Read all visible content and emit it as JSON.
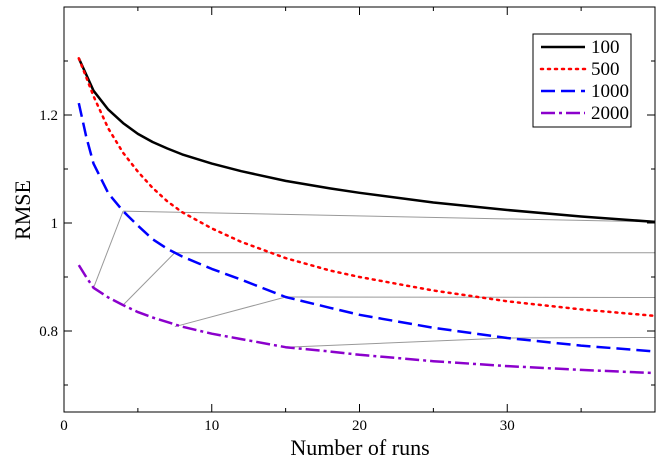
{
  "chart_data": {
    "type": "line",
    "xlabel": "Number of runs",
    "ylabel": "RMSE",
    "xlim": [
      0,
      40
    ],
    "ylim": [
      0.65,
      1.4
    ],
    "x_ticks": [
      0,
      10,
      20,
      30
    ],
    "x_tick_labels": [
      "0",
      "10",
      "20",
      "30"
    ],
    "y_ticks": [
      0.8,
      1.0,
      1.2
    ],
    "y_tick_labels": [
      "0.8",
      "1",
      "1.2"
    ],
    "grid": false,
    "legend_position": "top-right",
    "series": [
      {
        "name": "100",
        "color": "#000000",
        "style": "solid",
        "points": [
          [
            1,
            1.305
          ],
          [
            1.5,
            1.275
          ],
          [
            2,
            1.245
          ],
          [
            3,
            1.21
          ],
          [
            4,
            1.185
          ],
          [
            5,
            1.165
          ],
          [
            6,
            1.15
          ],
          [
            7,
            1.138
          ],
          [
            8,
            1.127
          ],
          [
            10,
            1.11
          ],
          [
            12,
            1.096
          ],
          [
            15,
            1.078
          ],
          [
            18,
            1.064
          ],
          [
            20,
            1.056
          ],
          [
            25,
            1.038
          ],
          [
            30,
            1.024
          ],
          [
            35,
            1.012
          ],
          [
            40,
            1.002
          ]
        ]
      },
      {
        "name": "500",
        "color": "#ff0000",
        "style": "dotted",
        "points": [
          [
            1,
            1.305
          ],
          [
            1.5,
            1.27
          ],
          [
            2,
            1.235
          ],
          [
            3,
            1.175
          ],
          [
            4,
            1.13
          ],
          [
            5,
            1.095
          ],
          [
            6,
            1.065
          ],
          [
            7,
            1.04
          ],
          [
            8,
            1.02
          ],
          [
            10,
            0.99
          ],
          [
            12,
            0.965
          ],
          [
            15,
            0.935
          ],
          [
            18,
            0.912
          ],
          [
            20,
            0.9
          ],
          [
            25,
            0.875
          ],
          [
            30,
            0.855
          ],
          [
            35,
            0.84
          ],
          [
            40,
            0.828
          ]
        ]
      },
      {
        "name": "1000",
        "color": "#0000ff",
        "style": "dashed",
        "points": [
          [
            1,
            1.222
          ],
          [
            1.5,
            1.16
          ],
          [
            2,
            1.11
          ],
          [
            3,
            1.055
          ],
          [
            4,
            1.022
          ],
          [
            5,
            0.995
          ],
          [
            6,
            0.97
          ],
          [
            7,
            0.952
          ],
          [
            8,
            0.938
          ],
          [
            10,
            0.915
          ],
          [
            12,
            0.895
          ],
          [
            15,
            0.863
          ],
          [
            18,
            0.843
          ],
          [
            20,
            0.83
          ],
          [
            25,
            0.806
          ],
          [
            30,
            0.787
          ],
          [
            35,
            0.773
          ],
          [
            40,
            0.762
          ]
        ]
      },
      {
        "name": "2000",
        "color": "#8b00cc",
        "style": "dashdot",
        "points": [
          [
            1,
            0.922
          ],
          [
            1.5,
            0.9
          ],
          [
            2,
            0.88
          ],
          [
            3,
            0.862
          ],
          [
            4,
            0.848
          ],
          [
            5,
            0.835
          ],
          [
            6,
            0.825
          ],
          [
            8,
            0.808
          ],
          [
            10,
            0.795
          ],
          [
            12,
            0.785
          ],
          [
            15,
            0.77
          ],
          [
            18,
            0.762
          ],
          [
            20,
            0.756
          ],
          [
            25,
            0.744
          ],
          [
            30,
            0.735
          ],
          [
            35,
            0.728
          ],
          [
            40,
            0.722
          ]
        ]
      }
    ],
    "connector_lines": {
      "color": "#999999",
      "segments": [
        [
          [
            2,
            0.88
          ],
          [
            4,
            1.022
          ]
        ],
        [
          [
            4,
            0.848
          ],
          [
            7.5,
            0.945
          ]
        ],
        [
          [
            7.5,
            0.808
          ],
          [
            15,
            0.863
          ]
        ],
        [
          [
            15,
            0.77
          ],
          [
            30,
            0.787
          ]
        ],
        [
          [
            4,
            1.022
          ],
          [
            40,
            1.002
          ]
        ],
        [
          [
            7.5,
            0.945
          ],
          [
            40,
            0.945
          ]
        ],
        [
          [
            15,
            0.863
          ],
          [
            40,
            0.862
          ]
        ],
        [
          [
            30,
            0.787
          ],
          [
            40,
            0.788
          ]
        ]
      ]
    }
  }
}
